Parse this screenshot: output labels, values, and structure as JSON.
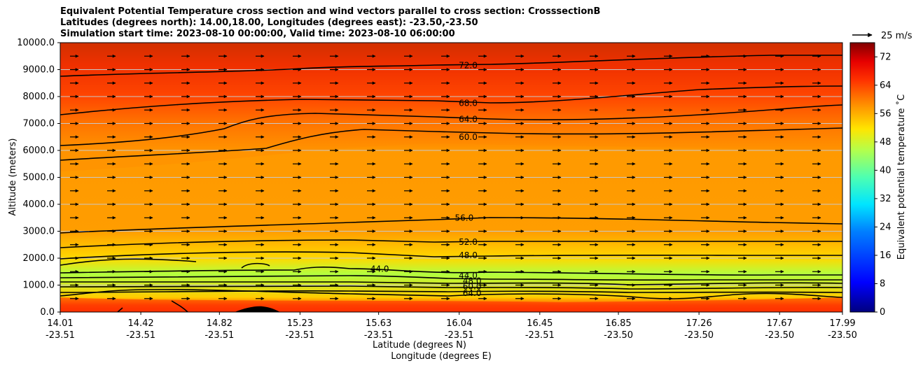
{
  "chart_data": {
    "type": "contour",
    "title_lines": [
      "Equivalent Potential Temperature cross section and wind vectors parallel to cross section: CrosssectionB",
      "Latitudes (degrees north): 14.00,18.00, Longitudes (degrees east): -23.50,-23.50",
      "Simulation start time: 2023-08-10 00:00:00, Valid time: 2023-08-10 06:00:00"
    ],
    "ylabel": "Altitude (meters)",
    "xlabel_lines": [
      "Latitude (degrees N)",
      "Longitude (degrees E)"
    ],
    "ylim": [
      0,
      10000
    ],
    "yticks": [
      "0.0",
      "1000.0",
      "2000.0",
      "3000.0",
      "4000.0",
      "5000.0",
      "6000.0",
      "7000.0",
      "8000.0",
      "9000.0",
      "10000.0"
    ],
    "xlim_lat": [
      14.01,
      17.99
    ],
    "xticks": [
      {
        "lat": "14.01",
        "lon": "-23.51",
        "x": 14.01
      },
      {
        "lat": "14.42",
        "lon": "-23.51",
        "x": 14.42
      },
      {
        "lat": "14.82",
        "lon": "-23.51",
        "x": 14.82
      },
      {
        "lat": "15.23",
        "lon": "-23.51",
        "x": 15.23
      },
      {
        "lat": "15.63",
        "lon": "-23.51",
        "x": 15.63
      },
      {
        "lat": "16.04",
        "lon": "-23.51",
        "x": 16.04
      },
      {
        "lat": "16.45",
        "lon": "-23.51",
        "x": 16.45
      },
      {
        "lat": "16.85",
        "lon": "-23.50",
        "x": 16.85
      },
      {
        "lat": "17.26",
        "lon": "-23.50",
        "x": 17.26
      },
      {
        "lat": "17.67",
        "lon": "-23.50",
        "x": 17.67
      },
      {
        "lat": "17.99",
        "lon": "-23.50",
        "x": 17.99
      }
    ],
    "colorbar": {
      "label": "Equivalent potential temperature ˚C",
      "range": [
        0,
        76
      ],
      "ticks": [
        "0",
        "8",
        "16",
        "24",
        "32",
        "40",
        "48",
        "56",
        "64",
        "72"
      ],
      "stops": [
        "#00007f",
        "#0000ff",
        "#0080ff",
        "#00e5ff",
        "#4dffb2",
        "#b2ff4d",
        "#ffe500",
        "#ff9900",
        "#ff5500",
        "#e60000",
        "#800000"
      ]
    },
    "grid": true,
    "wind_key": "25 m/s",
    "contour_labels": [
      {
        "text": "72.0",
        "x": 16.0,
        "y": 9150
      },
      {
        "text": "68.0",
        "x": 16.0,
        "y": 7750
      },
      {
        "text": "64.0",
        "x": 16.0,
        "y": 7150
      },
      {
        "text": "60.0",
        "x": 16.0,
        "y": 6500
      },
      {
        "text": "56.0",
        "x": 15.98,
        "y": 3500
      },
      {
        "text": "52.0",
        "x": 16.0,
        "y": 2600
      },
      {
        "text": "48.0",
        "x": 16.0,
        "y": 2100
      },
      {
        "text": "44.0",
        "x": 15.55,
        "y": 1600
      },
      {
        "text": "44.0",
        "x": 16.0,
        "y": 1350
      },
      {
        "text": "48.0",
        "x": 16.02,
        "y": 1150
      },
      {
        "text": "60.0",
        "x": 16.02,
        "y": 950
      },
      {
        "text": "64.0",
        "x": 16.02,
        "y": 700
      }
    ]
  }
}
